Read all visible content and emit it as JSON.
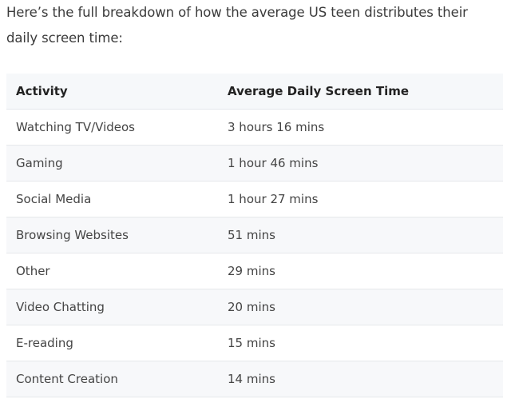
{
  "intro": {
    "text": "Here’s the full breakdown of how the average US teen distributes their daily screen time:"
  },
  "table": {
    "headers": [
      "Activity",
      "Average Daily Screen Time"
    ],
    "rows": [
      [
        "Watching TV/Videos",
        "3 hours 16 mins"
      ],
      [
        "Gaming",
        "1 hour 46 mins"
      ],
      [
        "Social Media",
        "1 hour 27 mins"
      ],
      [
        "Browsing Websites",
        "51 mins"
      ],
      [
        "Other",
        "29 mins"
      ],
      [
        "Video Chatting",
        "20 mins"
      ],
      [
        "E-reading",
        "15 mins"
      ],
      [
        "Content Creation",
        "14 mins"
      ]
    ]
  }
}
